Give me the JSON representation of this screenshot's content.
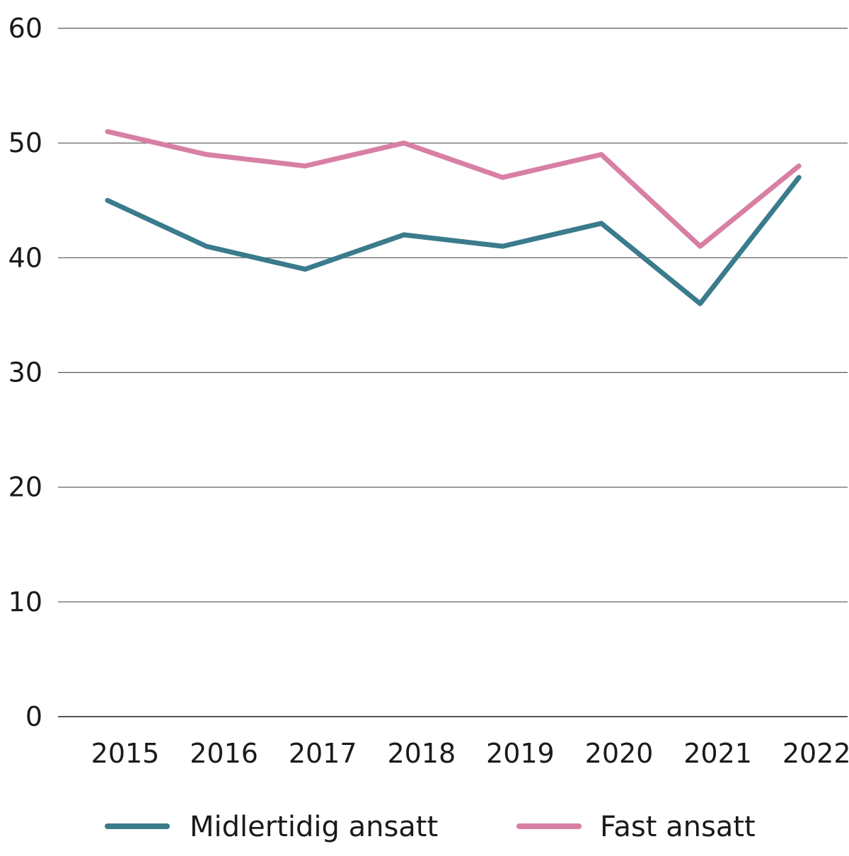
{
  "chart_data": {
    "type": "line",
    "title": "",
    "xlabel": "",
    "ylabel": "",
    "categories": [
      "2015",
      "2016",
      "2017",
      "2018",
      "2019",
      "2020",
      "2021",
      "2022"
    ],
    "ylim": [
      0,
      60
    ],
    "yticks": [
      "0",
      "10",
      "20",
      "30",
      "40",
      "50",
      "60"
    ],
    "grid": true,
    "legend_position": "bottom",
    "series": [
      {
        "name": "Midlertidig ansatt",
        "color": "#3a7b8c",
        "values": [
          45,
          41,
          39,
          42,
          41,
          43,
          36,
          47
        ]
      },
      {
        "name": "Fast ansatt",
        "color": "#d87fa4",
        "values": [
          51,
          49,
          48,
          50,
          47,
          49,
          41,
          48
        ]
      }
    ]
  }
}
